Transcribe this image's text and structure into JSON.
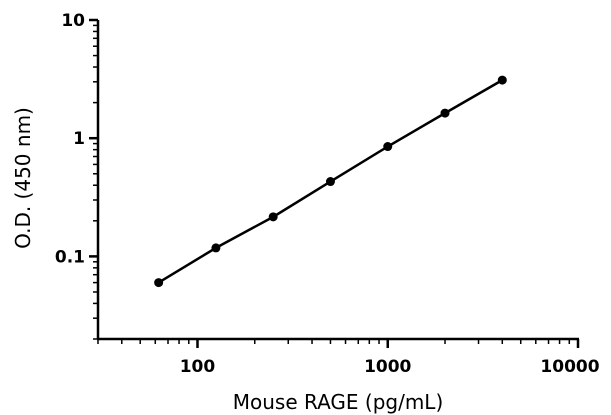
{
  "chart_data": {
    "type": "scatter",
    "title": "",
    "xlabel": "Mouse RAGE (pg/mL)",
    "ylabel": "O.D. (450 nm)",
    "x_scale": "log",
    "y_scale": "log",
    "xlim": [
      30,
      10000
    ],
    "ylim": [
      0.02,
      10
    ],
    "x_ticks": [
      100,
      1000,
      10000
    ],
    "x_tick_labels": [
      "100",
      "1000",
      "10000"
    ],
    "y_ticks": [
      0.1,
      1,
      10
    ],
    "y_tick_labels": [
      "0.1",
      "1",
      "10"
    ],
    "grid": false,
    "legend": "none",
    "fit_line": true,
    "series": [
      {
        "x": [
          62.5,
          125,
          250,
          500,
          1000,
          2000,
          4000
        ],
        "y": [
          0.06,
          0.118,
          0.216,
          0.43,
          0.85,
          1.63,
          3.1
        ]
      }
    ],
    "colors": {
      "marker": "#000000",
      "line": "#000000",
      "axis": "#000000"
    }
  }
}
